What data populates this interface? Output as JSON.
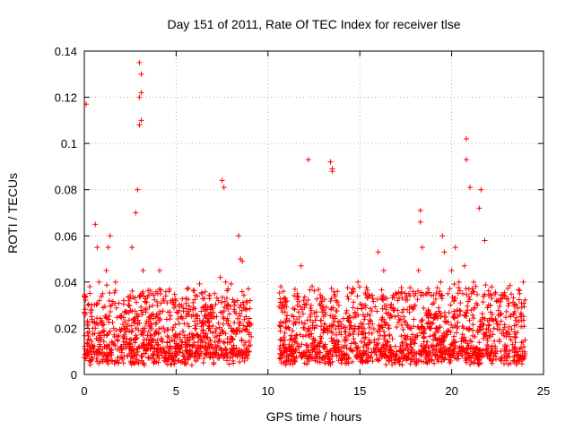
{
  "chart_data": {
    "type": "scatter",
    "title": "Day 151 of 2011, Rate Of TEC Index for receiver tlse",
    "xlabel": "GPS time / hours",
    "ylabel": "ROTI / TECUs",
    "xlim": [
      0,
      25
    ],
    "ylim": [
      0,
      0.14
    ],
    "x_ticks": [
      "0",
      "5",
      "10",
      "15",
      "20",
      "25"
    ],
    "y_ticks": [
      "0",
      "0.02",
      "0.04",
      "0.06",
      "0.08",
      "0.1",
      "0.12",
      "0.14"
    ],
    "grid": true,
    "marker": "+",
    "color": "#ff0000",
    "data_gap_hours": [
      9.1,
      10.6
    ],
    "series": [
      {
        "values_note": "dense cloud",
        "x": [
          0.1,
          0.2,
          0.2,
          0.3,
          0.3,
          0.4,
          0.5,
          0.6,
          0.6,
          0.7,
          0.8,
          0.9,
          1.0,
          1.1,
          1.2,
          1.3,
          1.4,
          1.5,
          1.6,
          1.7,
          1.8,
          2.0,
          2.2,
          2.4,
          2.6,
          2.8,
          2.9,
          3.0,
          3.0,
          3.0,
          3.1,
          3.1,
          3.1,
          3.2,
          3.3,
          3.5,
          3.7,
          3.9,
          4.0,
          4.1,
          4.2,
          4.3,
          4.5,
          4.7,
          5.0,
          5.3,
          5.6,
          5.9,
          6.2,
          6.5,
          6.8,
          7.0,
          7.2,
          7.4,
          7.5,
          7.6,
          7.7,
          7.8,
          8.0,
          8.2,
          8.4,
          8.5,
          8.6,
          8.8,
          9.0,
          10.7,
          10.8,
          11.0,
          11.2,
          11.4,
          11.6,
          11.8,
          12.0,
          12.2,
          12.3,
          12.5,
          12.8,
          13.0,
          13.2,
          13.4,
          13.5,
          13.5,
          13.6,
          13.8,
          14.0,
          14.3,
          14.6,
          14.9,
          15.2,
          15.5,
          15.8,
          16.0,
          16.3,
          16.6,
          16.9,
          17.2,
          17.5,
          17.8,
          18.0,
          18.2,
          18.3,
          18.3,
          18.4,
          18.6,
          18.8,
          19.0,
          19.2,
          19.4,
          19.5,
          19.6,
          19.8,
          20.0,
          20.2,
          20.4,
          20.6,
          20.7,
          20.8,
          20.8,
          21.0,
          21.2,
          21.4,
          21.5,
          21.6,
          21.8,
          22.0,
          22.3,
          22.6,
          22.9,
          23.2,
          23.5,
          23.7,
          23.9
        ],
        "y": [
          0.117,
          0.03,
          0.015,
          0.038,
          0.012,
          0.025,
          0.01,
          0.065,
          0.02,
          0.055,
          0.04,
          0.015,
          0.035,
          0.012,
          0.045,
          0.055,
          0.06,
          0.03,
          0.02,
          0.04,
          0.015,
          0.012,
          0.02,
          0.03,
          0.055,
          0.07,
          0.08,
          0.108,
          0.12,
          0.135,
          0.11,
          0.13,
          0.122,
          0.045,
          0.02,
          0.015,
          0.012,
          0.025,
          0.035,
          0.045,
          0.02,
          0.01,
          0.012,
          0.008,
          0.01,
          0.012,
          0.015,
          0.012,
          0.014,
          0.016,
          0.02,
          0.018,
          0.025,
          0.042,
          0.084,
          0.081,
          0.04,
          0.03,
          0.02,
          0.03,
          0.06,
          0.05,
          0.049,
          0.025,
          0.022,
          0.038,
          0.03,
          0.02,
          0.015,
          0.025,
          0.035,
          0.047,
          0.03,
          0.093,
          0.02,
          0.015,
          0.012,
          0.018,
          0.02,
          0.092,
          0.089,
          0.088,
          0.015,
          0.012,
          0.01,
          0.015,
          0.02,
          0.04,
          0.012,
          0.015,
          0.01,
          0.053,
          0.045,
          0.02,
          0.025,
          0.012,
          0.015,
          0.02,
          0.03,
          0.045,
          0.071,
          0.066,
          0.055,
          0.035,
          0.02,
          0.015,
          0.025,
          0.04,
          0.06,
          0.053,
          0.035,
          0.045,
          0.055,
          0.04,
          0.035,
          0.047,
          0.093,
          0.102,
          0.081,
          0.04,
          0.03,
          0.072,
          0.08,
          0.058,
          0.03,
          0.02,
          0.015,
          0.012,
          0.025,
          0.03,
          0.035,
          0.04
        ]
      }
    ]
  }
}
